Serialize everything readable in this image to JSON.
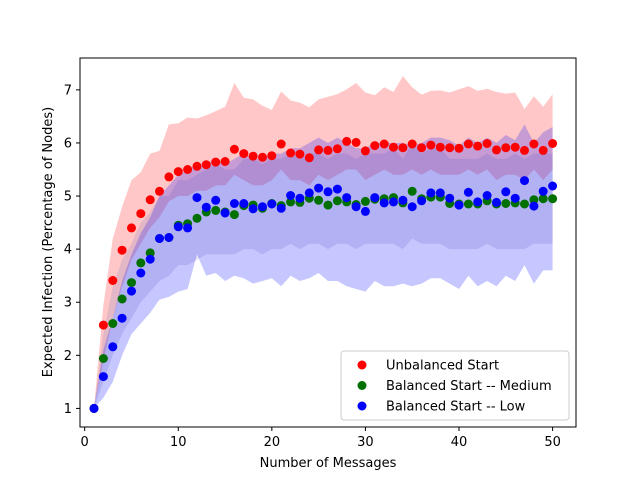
{
  "chart_data": {
    "type": "scatter",
    "xlabel": "Number of Messages",
    "ylabel": "Expected Infection (Percentage of Nodes)",
    "xlim": [
      -0.5,
      52.5
    ],
    "ylim": [
      0.65,
      7.6
    ],
    "xticks": [
      0,
      10,
      20,
      30,
      40,
      50
    ],
    "yticks": [
      1,
      2,
      3,
      4,
      5,
      6,
      7
    ],
    "grid": false,
    "legend_position": "lower-right",
    "x": [
      1,
      2,
      3,
      4,
      5,
      6,
      7,
      8,
      9,
      10,
      11,
      12,
      13,
      14,
      15,
      16,
      17,
      18,
      19,
      20,
      21,
      22,
      23,
      24,
      25,
      26,
      27,
      28,
      29,
      30,
      31,
      32,
      33,
      34,
      35,
      36,
      37,
      38,
      39,
      40,
      41,
      42,
      43,
      44,
      45,
      46,
      47,
      48,
      49,
      50
    ],
    "series": [
      {
        "name": "Unbalanced Start",
        "color": "#ff0000",
        "band_color": "#ff0000",
        "values": [
          1.0,
          2.57,
          3.41,
          3.98,
          4.4,
          4.67,
          4.93,
          5.09,
          5.36,
          5.46,
          5.5,
          5.56,
          5.59,
          5.64,
          5.65,
          5.88,
          5.8,
          5.75,
          5.73,
          5.76,
          5.98,
          5.81,
          5.79,
          5.72,
          5.87,
          5.86,
          5.89,
          6.03,
          6.01,
          5.85,
          5.95,
          5.98,
          5.92,
          5.91,
          5.98,
          5.91,
          5.96,
          5.92,
          5.91,
          5.9,
          5.98,
          5.94,
          5.99,
          5.87,
          5.91,
          5.92,
          5.86,
          5.98,
          5.86,
          5.99
        ],
        "lower": [
          1.0,
          1.9,
          2.7,
          3.3,
          3.8,
          4.1,
          4.4,
          4.6,
          4.9,
          5.0,
          5.0,
          5.1,
          5.1,
          5.2,
          5.2,
          5.4,
          5.3,
          5.2,
          5.2,
          5.3,
          5.5,
          5.3,
          5.3,
          5.2,
          5.4,
          5.3,
          5.4,
          5.5,
          5.5,
          5.3,
          5.4,
          5.5,
          5.4,
          5.4,
          5.5,
          5.4,
          5.5,
          5.4,
          5.4,
          5.4,
          5.5,
          5.4,
          5.5,
          5.3,
          5.4,
          5.4,
          5.3,
          5.5,
          5.3,
          5.5
        ],
        "upper": [
          1.0,
          2.95,
          4.2,
          4.8,
          5.3,
          5.45,
          5.8,
          5.85,
          6.35,
          6.37,
          6.48,
          6.46,
          6.52,
          6.6,
          6.68,
          7.13,
          6.85,
          6.82,
          6.7,
          6.62,
          6.97,
          6.8,
          6.76,
          6.67,
          6.82,
          6.87,
          6.92,
          7.01,
          7.13,
          6.95,
          6.9,
          7.05,
          6.96,
          7.26,
          7.05,
          6.91,
          6.98,
          6.99,
          6.95,
          7.01,
          7.07,
          6.98,
          7.02,
          6.96,
          6.93,
          6.95,
          6.64,
          6.88,
          6.68,
          6.92
        ]
      },
      {
        "name": "Balanced Start -- Medium",
        "color": "#007000",
        "band_color": "#7f7fbf",
        "values": [
          1.0,
          1.94,
          2.6,
          3.06,
          3.37,
          3.74,
          3.93,
          4.2,
          4.22,
          4.45,
          4.48,
          4.58,
          4.7,
          4.73,
          4.7,
          4.65,
          4.82,
          4.83,
          4.77,
          4.86,
          4.82,
          4.89,
          4.88,
          4.96,
          4.92,
          4.83,
          4.91,
          4.89,
          4.84,
          4.9,
          4.94,
          4.95,
          4.97,
          4.87,
          5.09,
          4.95,
          4.98,
          4.98,
          4.86,
          4.85,
          4.85,
          4.85,
          4.91,
          4.85,
          4.86,
          4.87,
          4.85,
          4.93,
          4.95,
          4.95
        ],
        "lower": [
          1.0,
          1.5,
          2.0,
          2.4,
          2.7,
          3.0,
          3.2,
          3.4,
          3.5,
          3.7,
          3.7,
          3.8,
          3.9,
          3.9,
          3.9,
          3.9,
          4.0,
          4.0,
          3.9,
          4.0,
          4.0,
          4.1,
          4.0,
          4.1,
          4.1,
          4.0,
          4.1,
          4.1,
          4.0,
          4.1,
          4.1,
          4.1,
          4.1,
          4.0,
          4.2,
          4.1,
          4.1,
          4.1,
          4.0,
          4.0,
          4.0,
          4.0,
          4.1,
          4.0,
          4.0,
          4.0,
          4.0,
          4.1,
          4.1,
          4.1
        ],
        "upper": [
          1.0,
          2.4,
          3.3,
          3.8,
          4.1,
          4.5,
          4.7,
          5.0,
          5.0,
          5.3,
          5.3,
          5.4,
          5.5,
          5.6,
          5.5,
          5.5,
          5.7,
          5.7,
          5.6,
          5.7,
          5.7,
          5.8,
          5.7,
          5.8,
          5.8,
          5.7,
          5.8,
          5.8,
          5.7,
          5.8,
          5.8,
          5.8,
          5.9,
          5.7,
          6.0,
          5.8,
          5.9,
          5.9,
          5.7,
          5.7,
          5.7,
          5.7,
          5.8,
          5.7,
          5.7,
          5.8,
          5.7,
          5.8,
          5.8,
          5.8
        ]
      },
      {
        "name": "Balanced Start -- Low",
        "color": "#0000ff",
        "band_color": "#0000ff",
        "values": [
          1.0,
          1.6,
          2.16,
          2.7,
          3.21,
          3.55,
          3.81,
          4.2,
          4.22,
          4.42,
          4.4,
          4.97,
          4.79,
          4.92,
          4.68,
          4.86,
          4.86,
          4.76,
          4.8,
          4.85,
          4.77,
          5.01,
          4.96,
          5.06,
          5.15,
          5.08,
          5.13,
          4.97,
          4.8,
          4.71,
          4.97,
          4.87,
          4.89,
          4.92,
          4.8,
          4.91,
          5.06,
          5.06,
          4.96,
          4.83,
          5.07,
          4.89,
          5.01,
          4.88,
          5.08,
          4.96,
          5.29,
          4.81,
          5.09,
          5.19
        ],
        "lower": [
          1.0,
          1.2,
          1.5,
          2.0,
          2.4,
          2.6,
          2.8,
          3.05,
          3.1,
          3.2,
          3.25,
          3.9,
          3.5,
          3.55,
          3.4,
          3.5,
          3.45,
          3.35,
          3.4,
          3.45,
          3.3,
          3.5,
          3.4,
          3.45,
          3.55,
          3.4,
          3.4,
          3.3,
          3.25,
          3.2,
          3.4,
          3.3,
          3.3,
          3.35,
          3.3,
          3.35,
          3.45,
          3.45,
          3.35,
          3.25,
          3.5,
          3.3,
          3.4,
          3.3,
          3.5,
          3.4,
          3.7,
          3.35,
          3.6,
          3.6
        ],
        "upper": [
          1.0,
          2.1,
          2.7,
          3.4,
          3.9,
          4.3,
          4.6,
          5.0,
          5.2,
          5.4,
          5.5,
          5.6,
          5.6,
          5.7,
          5.6,
          5.7,
          5.8,
          5.7,
          5.7,
          5.8,
          5.8,
          5.9,
          5.9,
          6.0,
          6.1,
          6.0,
          6.1,
          6.0,
          5.9,
          5.9,
          6.0,
          6.0,
          6.0,
          6.0,
          5.95,
          6.0,
          6.1,
          6.1,
          6.05,
          5.95,
          6.1,
          6.0,
          6.1,
          6.0,
          6.15,
          6.05,
          6.35,
          6.0,
          6.2,
          6.3
        ]
      }
    ]
  }
}
